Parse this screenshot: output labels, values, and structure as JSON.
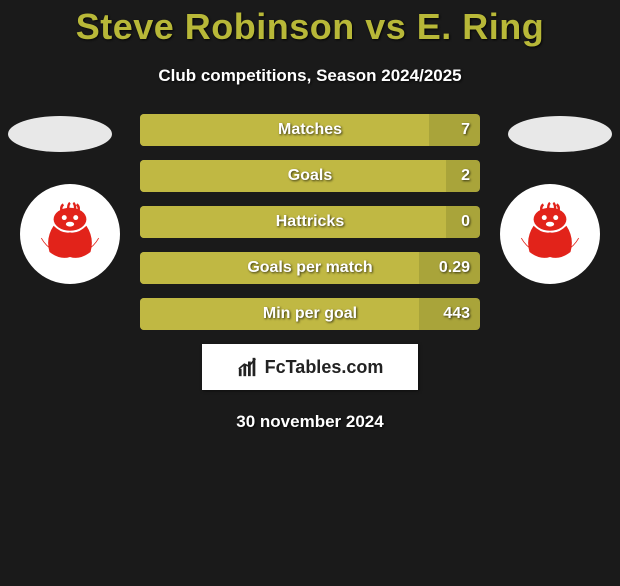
{
  "title": "Steve Robinson vs E. Ring",
  "subtitle": "Club competitions, Season 2024/2025",
  "date": "30 november 2024",
  "brand": "FcTables.com",
  "colors": {
    "background": "#1a1a1a",
    "title": "#b8b838",
    "bar_bg": "#a9a43a",
    "bar_fill": "#c0b843",
    "text": "#ffffff",
    "badge_bg": "#ffffff",
    "badge_art": "#e2231a",
    "ellipse": "#e8e8e8"
  },
  "badges": {
    "left": "lincoln-city-crest",
    "right": "lincoln-city-crest"
  },
  "bars": [
    {
      "label": "Matches",
      "value": "7",
      "fill_pct": 85
    },
    {
      "label": "Goals",
      "value": "2",
      "fill_pct": 90
    },
    {
      "label": "Hattricks",
      "value": "0",
      "fill_pct": 90
    },
    {
      "label": "Goals per match",
      "value": "0.29",
      "fill_pct": 82
    },
    {
      "label": "Min per goal",
      "value": "443",
      "fill_pct": 82
    }
  ]
}
